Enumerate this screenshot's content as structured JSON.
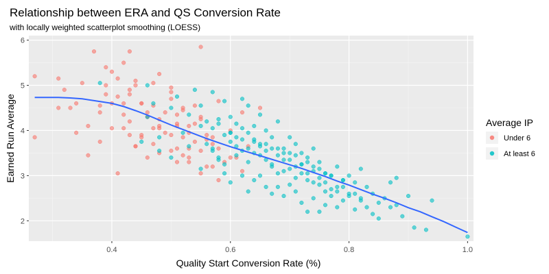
{
  "chart_data": {
    "type": "scatter",
    "title": "Relationship between ERA and QS Conversion Rate",
    "subtitle": "with locally weighted scatterplot smoothing (LOESS)",
    "xlabel": "Quality Start Conversion Rate (%)",
    "ylabel": "Earned Run Average",
    "xlim": [
      0.26,
      1.01
    ],
    "ylim": [
      1.55,
      6.1
    ],
    "x_ticks": [
      0.4,
      0.6,
      0.8,
      1.0
    ],
    "x_tick_labels": [
      "0.4",
      "0.6",
      "0.8",
      "1.0"
    ],
    "y_ticks": [
      2,
      3,
      4,
      5,
      6
    ],
    "y_tick_labels": [
      "2",
      "3",
      "4",
      "5",
      "6"
    ],
    "grid": true,
    "legend": {
      "title": "Average IP",
      "placement": "right",
      "entries": [
        {
          "label": "Under 6",
          "color": "#F8766D"
        },
        {
          "label": "At least 6",
          "color": "#00BFC4"
        }
      ]
    },
    "series": [
      {
        "name": "Under 6",
        "color": "#F8766D",
        "x": [
          0.27,
          0.27,
          0.31,
          0.31,
          0.32,
          0.33,
          0.34,
          0.34,
          0.35,
          0.36,
          0.37,
          0.38,
          0.38,
          0.39,
          0.39,
          0.4,
          0.4,
          0.41,
          0.41,
          0.42,
          0.42,
          0.43,
          0.43,
          0.43,
          0.44,
          0.44,
          0.45,
          0.45,
          0.46,
          0.46,
          0.47,
          0.48,
          0.48,
          0.5,
          0.5,
          0.51,
          0.51,
          0.52,
          0.53,
          0.53,
          0.54,
          0.55,
          0.55,
          0.56,
          0.57,
          0.58,
          0.6,
          0.62,
          0.65,
          0.39,
          0.41,
          0.42,
          0.44,
          0.46,
          0.48,
          0.5,
          0.52,
          0.54,
          0.56,
          0.58,
          0.6,
          0.62,
          0.42,
          0.43,
          0.45,
          0.47,
          0.49,
          0.51,
          0.53,
          0.55,
          0.57,
          0.59,
          0.4,
          0.44,
          0.46,
          0.48,
          0.5,
          0.52,
          0.54,
          0.56,
          0.58,
          0.45,
          0.47,
          0.49,
          0.51,
          0.53,
          0.55,
          0.61,
          0.63,
          0.36,
          0.38,
          0.43,
          0.47,
          0.5,
          0.52,
          0.55,
          0.57,
          0.48,
          0.51,
          0.53
        ],
        "y": [
          5.2,
          3.85,
          5.15,
          4.5,
          4.9,
          4.5,
          4.6,
          3.95,
          5.05,
          3.45,
          5.75,
          3.75,
          4.55,
          5.4,
          4.8,
          5.3,
          4.6,
          5.15,
          3.05,
          5.5,
          4.6,
          5.75,
          4.9,
          3.9,
          5.1,
          3.65,
          4.6,
          3.9,
          4.4,
          3.4,
          4.55,
          5.25,
          4.05,
          4.95,
          3.55,
          4.35,
          3.3,
          3.85,
          4.1,
          3.4,
          4.55,
          5.85,
          3.55,
          3.9,
          3.2,
          4.65,
          4.0,
          4.4,
          4.5,
          5.0,
          4.75,
          4.35,
          5.0,
          4.3,
          4.1,
          4.85,
          4.45,
          4.15,
          3.8,
          3.6,
          3.4,
          3.1,
          4.05,
          4.2,
          4.6,
          4.05,
          4.4,
          4.1,
          3.95,
          4.3,
          3.85,
          3.3,
          4.05,
          3.65,
          4.3,
          3.5,
          3.9,
          3.45,
          3.75,
          3.2,
          2.9,
          3.85,
          3.7,
          3.95,
          3.6,
          3.3,
          3.05,
          3.4,
          3.65,
          4.1,
          4.4,
          4.8,
          5.05,
          4.7,
          4.5,
          4.25,
          3.7,
          4.25,
          4.15,
          3.6
        ]
      },
      {
        "name": "At least 6",
        "color": "#00BFC4",
        "x": [
          0.38,
          0.45,
          0.46,
          0.46,
          0.47,
          0.48,
          0.48,
          0.5,
          0.5,
          0.51,
          0.52,
          0.53,
          0.54,
          0.55,
          0.55,
          0.56,
          0.57,
          0.57,
          0.58,
          0.58,
          0.59,
          0.59,
          0.6,
          0.6,
          0.6,
          0.61,
          0.61,
          0.62,
          0.62,
          0.62,
          0.63,
          0.63,
          0.63,
          0.64,
          0.64,
          0.64,
          0.65,
          0.65,
          0.65,
          0.66,
          0.66,
          0.66,
          0.67,
          0.67,
          0.67,
          0.68,
          0.68,
          0.68,
          0.69,
          0.69,
          0.69,
          0.7,
          0.7,
          0.7,
          0.71,
          0.71,
          0.71,
          0.72,
          0.72,
          0.72,
          0.73,
          0.73,
          0.73,
          0.74,
          0.74,
          0.74,
          0.75,
          0.75,
          0.75,
          0.76,
          0.76,
          0.76,
          0.77,
          0.77,
          0.78,
          0.78,
          0.78,
          0.79,
          0.79,
          0.8,
          0.8,
          0.81,
          0.81,
          0.82,
          0.82,
          0.83,
          0.83,
          0.84,
          0.84,
          0.85,
          0.85,
          0.86,
          0.87,
          0.87,
          0.88,
          0.88,
          0.89,
          0.9,
          0.91,
          0.93,
          0.94,
          1.0,
          0.56,
          0.57,
          0.58,
          0.59,
          0.6,
          0.61,
          0.62,
          0.63,
          0.64,
          0.65,
          0.66,
          0.67,
          0.68,
          0.69,
          0.7,
          0.71,
          0.72,
          0.73,
          0.74,
          0.75,
          0.76,
          0.77,
          0.78,
          0.79,
          0.8,
          0.81,
          0.82,
          0.57,
          0.59,
          0.61,
          0.63,
          0.65,
          0.67,
          0.69,
          0.71,
          0.73,
          0.75,
          0.77,
          0.79,
          0.53,
          0.55,
          0.58,
          0.6,
          0.62,
          0.64,
          0.66,
          0.68,
          0.7,
          0.72,
          0.74,
          0.76
        ],
        "y": [
          5.05,
          3.75,
          5.0,
          4.3,
          4.6,
          3.85,
          3.55,
          4.5,
          3.4,
          4.75,
          3.95,
          3.65,
          4.9,
          4.55,
          3.15,
          4.2,
          4.85,
          3.6,
          4.25,
          3.35,
          4.65,
          3.05,
          4.3,
          3.75,
          2.85,
          4.15,
          3.45,
          4.7,
          3.8,
          3.0,
          4.55,
          3.6,
          2.65,
          4.1,
          3.5,
          2.9,
          4.35,
          3.7,
          3.0,
          4.0,
          3.35,
          2.75,
          3.85,
          3.25,
          2.6,
          4.2,
          3.45,
          2.75,
          3.6,
          3.1,
          2.55,
          3.85,
          3.35,
          2.8,
          3.7,
          3.2,
          2.65,
          3.5,
          3.05,
          2.4,
          3.4,
          2.9,
          2.2,
          3.6,
          3.1,
          2.5,
          3.3,
          2.8,
          2.2,
          3.05,
          2.65,
          2.35,
          3.0,
          2.55,
          3.2,
          2.75,
          2.3,
          2.9,
          2.45,
          3.0,
          2.6,
          2.85,
          2.25,
          3.15,
          2.45,
          2.75,
          2.3,
          2.6,
          2.15,
          2.4,
          2.05,
          2.5,
          2.85,
          2.3,
          2.95,
          2.35,
          2.1,
          2.55,
          1.85,
          1.8,
          2.45,
          1.65,
          3.7,
          3.55,
          3.4,
          3.25,
          3.95,
          3.65,
          3.55,
          3.3,
          3.75,
          3.45,
          3.55,
          3.2,
          3.05,
          3.35,
          3.15,
          2.95,
          3.25,
          3.05,
          2.85,
          2.95,
          2.85,
          2.7,
          2.65,
          2.75,
          2.55,
          2.6,
          2.5,
          4.05,
          3.9,
          3.85,
          3.95,
          3.65,
          3.6,
          3.5,
          3.45,
          3.3,
          3.15,
          3.0,
          2.9,
          4.35,
          4.1,
          4.15,
          3.95,
          4.05,
          3.8,
          3.7,
          3.6,
          3.5,
          3.25,
          3.2,
          3.05
        ]
      }
    ],
    "loess": {
      "x": [
        0.27,
        0.29,
        0.31,
        0.33,
        0.35,
        0.37,
        0.4,
        0.42,
        0.44,
        0.46,
        0.48,
        0.5,
        0.52,
        0.54,
        0.56,
        0.58,
        0.6,
        0.62,
        0.64,
        0.66,
        0.68,
        0.7,
        0.72,
        0.74,
        0.76,
        0.78,
        0.8,
        0.82,
        0.84,
        0.86,
        0.88,
        0.9,
        0.92,
        0.94,
        0.96,
        0.98,
        1.0
      ],
      "y": [
        4.73,
        4.73,
        4.73,
        4.72,
        4.7,
        4.66,
        4.6,
        4.53,
        4.44,
        4.34,
        4.23,
        4.12,
        4.02,
        3.92,
        3.82,
        3.73,
        3.64,
        3.56,
        3.48,
        3.4,
        3.32,
        3.24,
        3.16,
        3.07,
        2.98,
        2.88,
        2.79,
        2.69,
        2.59,
        2.5,
        2.4,
        2.29,
        2.2,
        2.09,
        1.98,
        1.86,
        1.74
      ],
      "color": "#3366FF"
    }
  }
}
